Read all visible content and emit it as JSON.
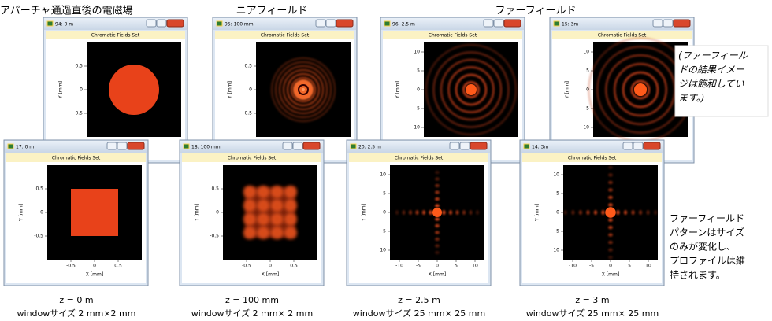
{
  "headings": [
    "アパーチャ通過直後の電磁場",
    "ニアフィールド",
    "ファーフィールド"
  ],
  "windows": [
    {
      "title": "94: 0 m",
      "subtitle": "Chromatic Fields Set",
      "ylabel": "Y [mm]",
      "yticks": [
        "0.5",
        "0",
        "-0.5"
      ]
    },
    {
      "title": "95: 100 mm",
      "subtitle": "Chromatic Fields Set",
      "ylabel": "Y [mm]",
      "yticks": [
        "0.5",
        "0",
        "-0.5"
      ]
    },
    {
      "title": "96: 2.5 m",
      "subtitle": "Chromatic Fields Set",
      "ylabel": "Y [mm]",
      "yticks": [
        "10",
        "5",
        "0",
        "5",
        "10"
      ]
    },
    {
      "title": "15: 3m",
      "subtitle": "Chromatic Fields Set",
      "ylabel": "Y [mm]",
      "yticks": [
        "10",
        "5",
        "0",
        "5",
        "10"
      ]
    },
    {
      "title": "17: 0 m",
      "subtitle": "Chromatic Fields Set",
      "ylabel": "Y [mm]",
      "yticks": [
        "0.5",
        "0",
        "-0.5"
      ],
      "xlabel": "X [mm]",
      "xticks": [
        "-0.5",
        "0",
        "0.5"
      ]
    },
    {
      "title": "18: 100 mm",
      "subtitle": "Chromatic Fields Set",
      "ylabel": "Y [mm]",
      "yticks": [
        "0.5",
        "0",
        "-0.5"
      ],
      "xlabel": "X [mm]",
      "xticks": [
        "-0.5",
        "0",
        "0.5"
      ]
    },
    {
      "title": "20: 2.5 m",
      "subtitle": "Chromatic Fields Set",
      "ylabel": "Y [mm]",
      "yticks": [
        "10",
        "5",
        "0",
        "5",
        "10"
      ],
      "xlabel": "X [mm]",
      "xticks": [
        "-10",
        "-5",
        "0",
        "5",
        "10"
      ]
    },
    {
      "title": "14: 3m",
      "subtitle": "Chromatic Fields Set",
      "ylabel": "Y [mm]",
      "yticks": [
        "10",
        "5",
        "0",
        "5",
        "10"
      ],
      "xlabel": "X [mm]",
      "xticks": [
        "-10",
        "-5",
        "0",
        "5",
        "10"
      ]
    }
  ],
  "captions": [
    {
      "z": "z = 0 m",
      "size": "windowサイズ 2 mm×2 mm"
    },
    {
      "z": "z = 100 mm",
      "size": "windowサイズ 2 mm× 2 mm"
    },
    {
      "z": "z = 2.5 m",
      "size": "windowサイズ 25 mm× 25 mm"
    },
    {
      "z": "z = 3 m",
      "size": "windowサイズ 25 mm× 25 mm"
    }
  ],
  "notes": {
    "saturation": [
      "(ファーフィール",
      "ドの結果イメー",
      "ジは飽和してい",
      "ます。)"
    ],
    "profile": [
      "ファーフィールド",
      "パターンはサイズ",
      "のみが変化し、",
      "プロファイルは維",
      "持されます。"
    ]
  }
}
